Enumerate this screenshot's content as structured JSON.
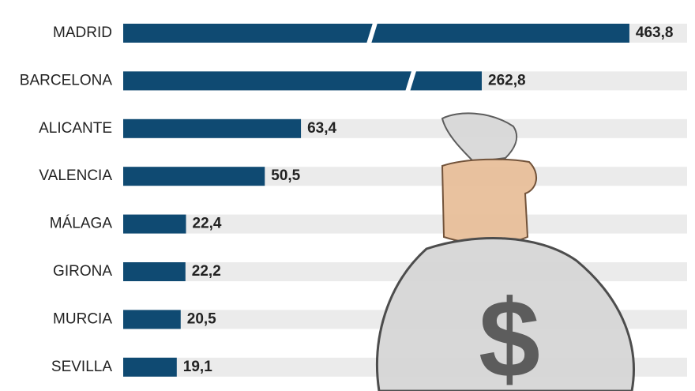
{
  "chart_data": {
    "type": "bar",
    "orientation": "horizontal",
    "categories": [
      "MADRID",
      "BARCELONA",
      "ALICANTE",
      "VALENCIA",
      "MÁLAGA",
      "GIRONA",
      "MURCIA",
      "SEVILLA"
    ],
    "values": [
      463.8,
      262.8,
      63.4,
      50.5,
      22.4,
      22.2,
      20.5,
      19.1
    ],
    "value_labels": [
      "463,8",
      "262,8",
      "63,4",
      "50,5",
      "22,4",
      "22,2",
      "20,5",
      "19,1"
    ],
    "color": "#0f4a72"
  }
}
